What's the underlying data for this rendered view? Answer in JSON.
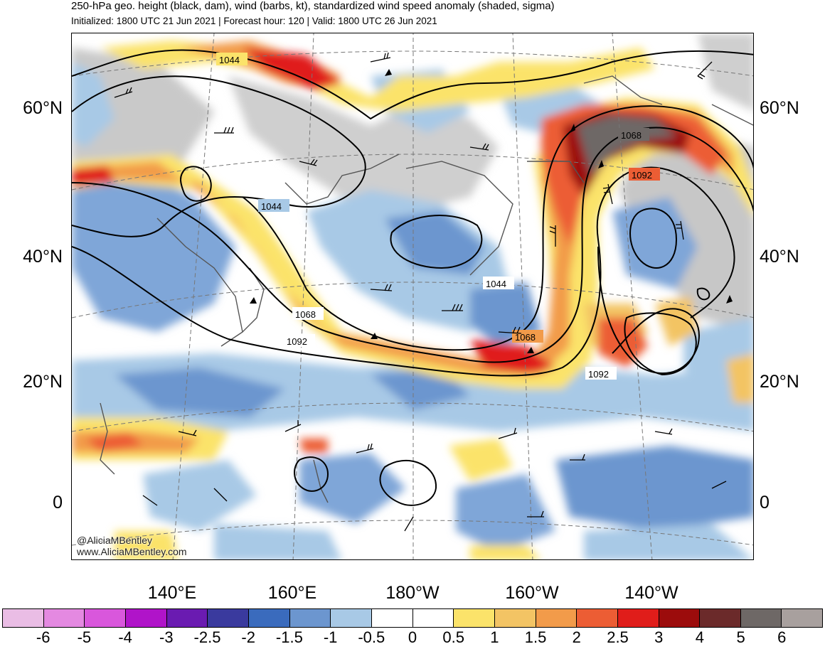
{
  "title": "250-hPa geo. height (black, dam), wind (barbs, kt), standardized wind speed anomaly (shaded, sigma)",
  "subtitle": "Initialized: 1800 UTC 21 Jun 2021 | Forecast hour: 120 | Valid: 1800 UTC 26 Jun 2021",
  "lat_labels": [
    "60°N",
    "40°N",
    "20°N",
    "0"
  ],
  "lon_labels": [
    "140°E",
    "160°E",
    "180°W",
    "160°W",
    "140°W"
  ],
  "contour_labels": [
    "1044",
    "1044",
    "1044",
    "1068",
    "1068",
    "1068",
    "1092",
    "1092",
    "1092"
  ],
  "credit": {
    "handle": "@AliciaMBentley",
    "site": "www.AliciaMBentley.com"
  },
  "colorbar": {
    "colors": [
      "#eabde5",
      "#e489e1",
      "#d957dc",
      "#b014c9",
      "#6a1bb1",
      "#3a3a9e",
      "#3a6bbd",
      "#6c96cf",
      "#a8c9e6",
      "#ffffff",
      "#ffffff",
      "#fbe36a",
      "#f3c464",
      "#f29b4a",
      "#ec5d34",
      "#e01d1a",
      "#9c0c0c",
      "#6b2a2a",
      "#6e6866",
      "#a8a09e"
    ],
    "labels": [
      "-6",
      "-5",
      "-4",
      "-3",
      "-2.5",
      "-2",
      "-1.5",
      "-1",
      "-0.5",
      "0",
      "0.5",
      "1",
      "1.5",
      "2",
      "2.5",
      "3",
      "4",
      "5",
      "6"
    ]
  }
}
